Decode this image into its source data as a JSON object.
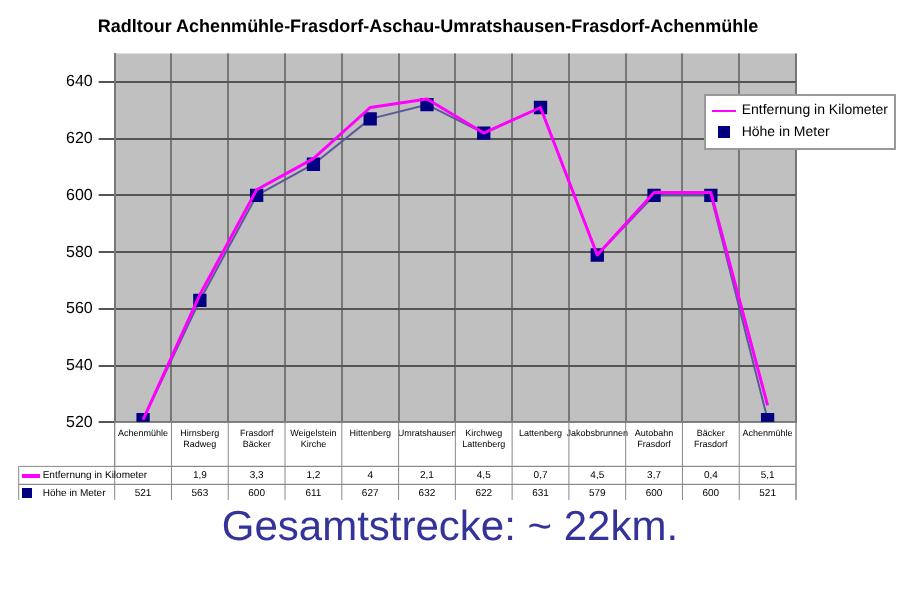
{
  "chart_data": {
    "type": "line",
    "title": "Radltour Achenmühle-Frasdorf-Aschau-Umratshausen-Frasdorf-Achenmühle",
    "categories": [
      "Achenmühle",
      "Hirnsberg Radweg",
      "Frasdorf Bäcker",
      "Weigelstein Kirche",
      "Hittenberg",
      "Umratshausen",
      "Kirchweg Lattenberg",
      "Lattenberg",
      "Jakobsbrunnen",
      "Autobahn Frasdorf",
      "Bäcker Frasdorf",
      "Achenmühle"
    ],
    "series": [
      {
        "name": "Entfernung in Kilometer",
        "color": "#ff00ff",
        "marker": "none",
        "values": [
          521,
          565,
          602,
          613,
          631,
          634,
          622,
          631,
          579,
          601,
          601,
          526
        ]
      },
      {
        "name": "Höhe in Meter",
        "color": "#000080",
        "marker": "square",
        "values": [
          521,
          563,
          600,
          611,
          627,
          632,
          622,
          631,
          579,
          600,
          600,
          521
        ],
        "value_labels": [
          "521",
          "563",
          "600",
          "611",
          "627",
          "632",
          "622",
          "631",
          "579",
          "600",
          "600",
          "521"
        ]
      }
    ],
    "ylim": [
      520,
      650
    ],
    "yticks": [
      520,
      540,
      560,
      580,
      600,
      620,
      640
    ],
    "grid": true,
    "legend": "top right",
    "annotations": [
      "Gesamtstrecke: ~ 22km.",
      "1,9",
      "3,3",
      "1,2",
      "4",
      "2,1",
      "4,5",
      "0,7",
      "4,5",
      "3,7",
      "0,4",
      "5,1"
    ]
  }
}
